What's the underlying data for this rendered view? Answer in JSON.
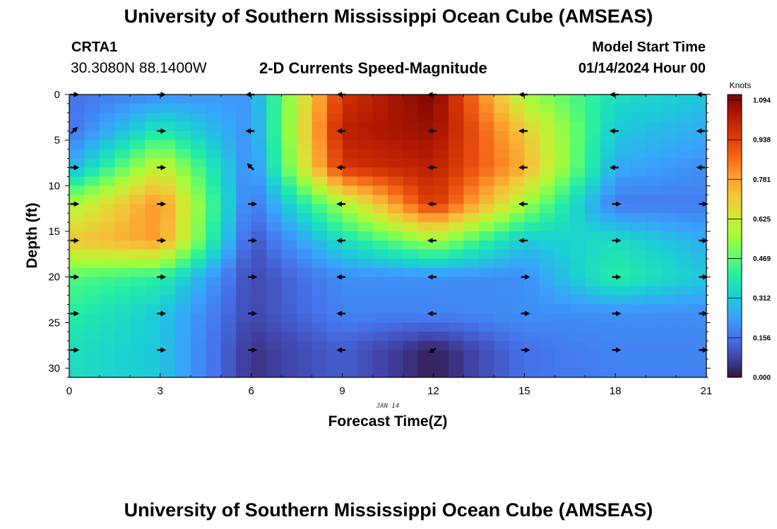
{
  "header": {
    "title": "University of Southern Mississippi Ocean Cube (AMSEAS)",
    "station_name": "CRTA1",
    "station_coords": "30.3080N  88.1400W",
    "plot_title": "2-D Currents Speed-Magnitude",
    "model_start_label": "Model Start Time",
    "model_start_value": "01/14/2024 Hour 00"
  },
  "footer": {
    "title": "University of Southern Mississippi Ocean Cube (AMSEAS)"
  },
  "chart_data": {
    "type": "heatmap",
    "title": "2-D Currents Speed-Magnitude",
    "xlabel": "Forecast Time(Z)",
    "ylabel": "Depth (ft)",
    "date_label": "JAN 14",
    "xlim": [
      0,
      21
    ],
    "ylim": [
      31,
      0
    ],
    "xticks": [
      0,
      3,
      6,
      9,
      12,
      15,
      18,
      21
    ],
    "yticks": [
      0,
      5,
      10,
      15,
      20,
      25,
      30
    ],
    "x_hours": [
      0,
      3,
      6,
      9,
      12,
      15,
      18,
      21
    ],
    "depths_ft": [
      0,
      4,
      8,
      12,
      16,
      20,
      24,
      28
    ],
    "speed_knots": [
      [
        0.15,
        0.2,
        0.22,
        0.95,
        1.09,
        0.55,
        0.35,
        0.3
      ],
      [
        0.15,
        0.38,
        0.2,
        1.0,
        1.05,
        0.7,
        0.3,
        0.25
      ],
      [
        0.25,
        0.62,
        0.18,
        0.95,
        1.0,
        0.75,
        0.25,
        0.2
      ],
      [
        0.55,
        0.8,
        0.15,
        0.55,
        0.95,
        0.55,
        0.16,
        0.17
      ],
      [
        0.7,
        0.78,
        0.1,
        0.35,
        0.55,
        0.3,
        0.35,
        0.25
      ],
      [
        0.45,
        0.4,
        0.08,
        0.2,
        0.2,
        0.2,
        0.4,
        0.3
      ],
      [
        0.4,
        0.3,
        0.08,
        0.18,
        0.18,
        0.2,
        0.2,
        0.2
      ],
      [
        0.35,
        0.3,
        0.05,
        0.12,
        0.02,
        0.15,
        0.18,
        0.18
      ]
    ],
    "vector_direction": [
      [
        "east",
        "east",
        "west",
        "west",
        "west",
        "west",
        "west",
        "west"
      ],
      [
        "northeast",
        "east",
        "west",
        "west",
        "west",
        "west",
        "west",
        "west"
      ],
      [
        "east",
        "east",
        "northwest",
        "west",
        "west",
        "west",
        "west",
        "west"
      ],
      [
        "east",
        "east",
        "east",
        "west",
        "west",
        "west",
        "east",
        "east"
      ],
      [
        "east",
        "east",
        "east",
        "west",
        "west",
        "west",
        "east",
        "east"
      ],
      [
        "east",
        "east",
        "east",
        "west",
        "west",
        "east",
        "east",
        "east"
      ],
      [
        "east",
        "east",
        "east",
        "west",
        "west",
        "east",
        "east",
        "east"
      ],
      [
        "east",
        "east",
        "east",
        "west",
        "southwest",
        "east",
        "east",
        "east"
      ]
    ],
    "colorbar": {
      "label": "Knots",
      "min": 0.0,
      "max": 1.09375,
      "tick_labels": [
        "0.000",
        "0.156",
        "0.312",
        "0.469",
        "0.625",
        "0.781",
        "0.938",
        "1.094"
      ],
      "palette": [
        "#30123b",
        "#4145ab",
        "#4675ed",
        "#39a2fc",
        "#1bcfd4",
        "#24eca6",
        "#61fc6c",
        "#a4fc3b",
        "#d1e834",
        "#f3c63a",
        "#fe9b2d",
        "#f36315",
        "#d93806",
        "#b11901",
        "#7a0402"
      ]
    }
  }
}
